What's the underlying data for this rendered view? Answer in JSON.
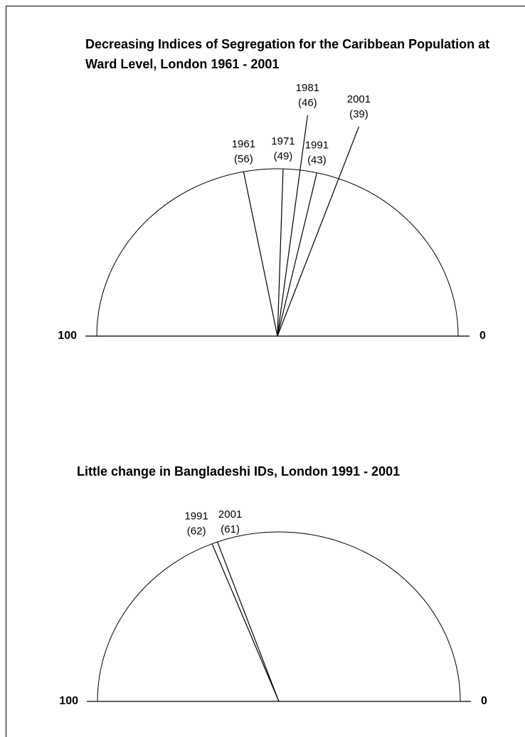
{
  "chart_data": [
    {
      "type": "gauge",
      "title": "Decreasing Indices of Segregation for the Caribbean Population at Ward Level, London 1961 - 2001",
      "categories": [
        "1961",
        "1971",
        "1981",
        "1991",
        "2001"
      ],
      "values": [
        56,
        49,
        46,
        43,
        39
      ],
      "value_labels": [
        "(56)",
        "(49)",
        "(46)",
        "(43)",
        "(39)"
      ],
      "color": "#000000",
      "ylim": [
        0,
        100
      ],
      "yticks": [
        100,
        0
      ]
    },
    {
      "type": "gauge",
      "title": "Little change in Bangladeshi IDs, London 1991 - 2001",
      "categories": [
        "1991",
        "2001"
      ],
      "values": [
        62,
        61
      ],
      "value_labels": [
        "(62)",
        "(61)"
      ],
      "color": "#000000",
      "ylim": [
        0,
        100
      ],
      "yticks": [
        100,
        0
      ]
    }
  ]
}
